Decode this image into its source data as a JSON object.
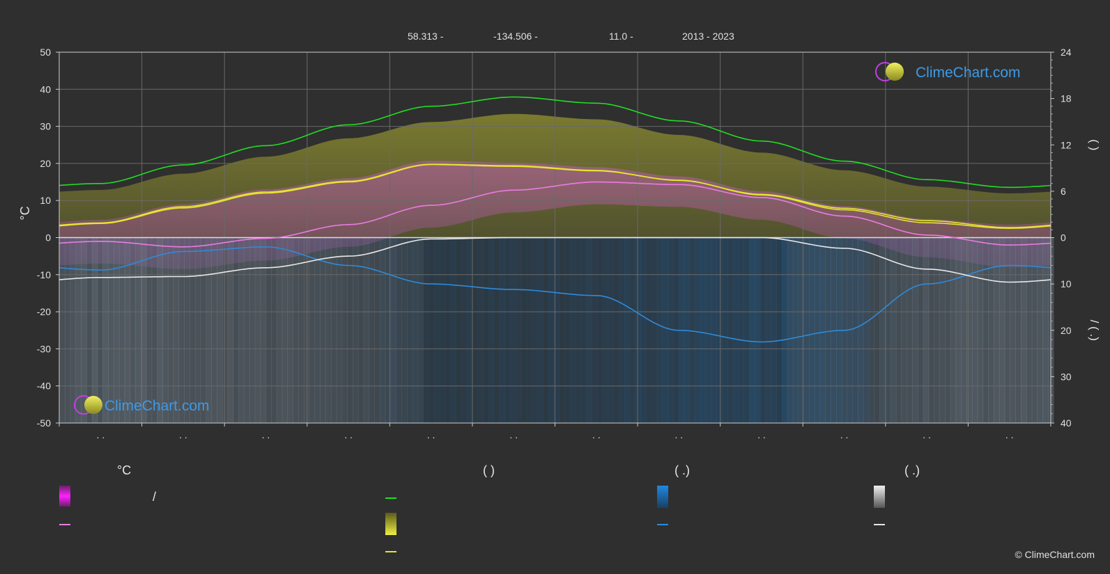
{
  "header": {
    "latitude": "58.313 -",
    "longitude": "-134.506 -",
    "elevation": "11.0 -",
    "years": "2013 - 2023"
  },
  "logo": {
    "text": "ClimeChart.com"
  },
  "copyright": "© ClimeChart.com",
  "legend": {
    "temp_heading": "°C",
    "sun_heading": "(          )",
    "rain_heading": "(   .)",
    "snow_heading": "(   .)",
    "temp_range_sep": "/"
  },
  "chart_data": {
    "type": "line",
    "left_axis": {
      "label": "°C",
      "ylim": [
        -50,
        50
      ],
      "ticks": [
        50,
        40,
        30,
        20,
        10,
        0,
        -10,
        -20,
        -30,
        -40,
        -50
      ]
    },
    "right_axis": {
      "upper_ticks": [
        24,
        18,
        12,
        6,
        0
      ],
      "lower_ticks": [
        10,
        20,
        30,
        40
      ],
      "upper_label": "(          )",
      "lower_label": "/     (   .)"
    },
    "month_tick_labels": [
      ". .",
      ". .",
      ". .",
      ". .",
      ". .",
      ". .",
      ". .",
      ". .",
      ". .",
      ". .",
      ". .",
      ". ."
    ],
    "grid": true,
    "months_x": [
      0.5,
      1.5,
      2.5,
      3.5,
      4.5,
      5.5,
      6.5,
      7.5,
      8.5,
      9.5,
      10.5,
      11.5
    ],
    "series": [
      {
        "key": "daylight_hours",
        "color": "#22dd22",
        "axis": "hours",
        "values": [
          7.0,
          9.4,
          11.9,
          14.6,
          17.0,
          18.2,
          17.4,
          15.1,
          12.5,
          9.9,
          7.5,
          6.5
        ]
      },
      {
        "key": "sunshine_hours",
        "color": "#e5e531",
        "axis": "hours",
        "values": [
          1.9,
          4.0,
          5.9,
          7.3,
          9.5,
          9.3,
          8.7,
          7.4,
          5.6,
          3.8,
          2.2,
          1.3
        ]
      },
      {
        "key": "avg_temp_max",
        "color": "#e5e531",
        "axis": "temp",
        "values": [
          3.8,
          8.0,
          12.0,
          15.0,
          19.7,
          19.2,
          18.0,
          15.5,
          11.5,
          7.5,
          4.0,
          2.5
        ]
      },
      {
        "key": "avg_temp",
        "color": "#ea7ce0",
        "axis": "temp",
        "values": [
          -1.0,
          -2.5,
          -0.2,
          3.5,
          8.7,
          12.8,
          15.0,
          14.3,
          10.8,
          5.8,
          0.7,
          -2.0
        ]
      },
      {
        "key": "rain_mm_per_day",
        "color": "#2e8bdb",
        "axis": "precip",
        "values": [
          7.0,
          3.0,
          2.0,
          6.0,
          10.0,
          11.2,
          12.5,
          20.0,
          22.5,
          20.0,
          10.0,
          6.0
        ]
      },
      {
        "key": "snow_mm_per_day",
        "color": "#e8e8e8",
        "axis": "precip",
        "values": [
          8.6,
          8.4,
          6.5,
          4.0,
          0.3,
          0.0,
          0.0,
          0.0,
          0.0,
          2.3,
          6.8,
          9.6
        ]
      }
    ]
  }
}
